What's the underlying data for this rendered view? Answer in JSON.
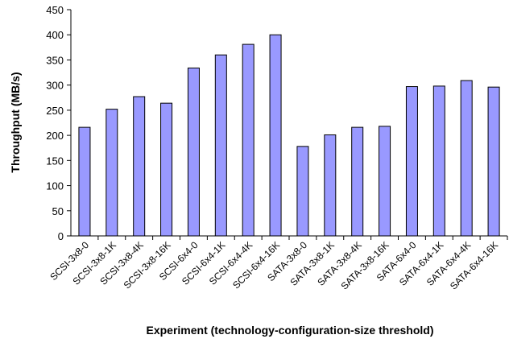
{
  "chart_data": {
    "type": "bar",
    "y_label": "Throughput (MB/s)",
    "x_label": "Experiment (technology-configuration-size threshold)",
    "categories": [
      "SCSI-3x8-0",
      "SCSI-3x8-1K",
      "SCSI-3x8-4K",
      "SCSI-3x8-16K",
      "SCSI-6x4-0",
      "SCSI-6x4-1K",
      "SCSI-6x4-4K",
      "SCSI-6x4-16K",
      "SATA-3x8-0",
      "SATA-3x8-1K",
      "SATA-3x8-4K",
      "SATA-3x8-16K",
      "SATA-6x4-0",
      "SATA-6x4-1K",
      "SATA-6x4-4K",
      "SATA-6x4-16K"
    ],
    "values": [
      216,
      252,
      277,
      264,
      334,
      360,
      381,
      400,
      178,
      201,
      216,
      218,
      297,
      298,
      309,
      296
    ],
    "color": "#9999ff",
    "ylim": [
      0,
      450
    ],
    "yticks": [
      0,
      50,
      100,
      150,
      200,
      250,
      300,
      350,
      400,
      450
    ],
    "grid": false
  }
}
